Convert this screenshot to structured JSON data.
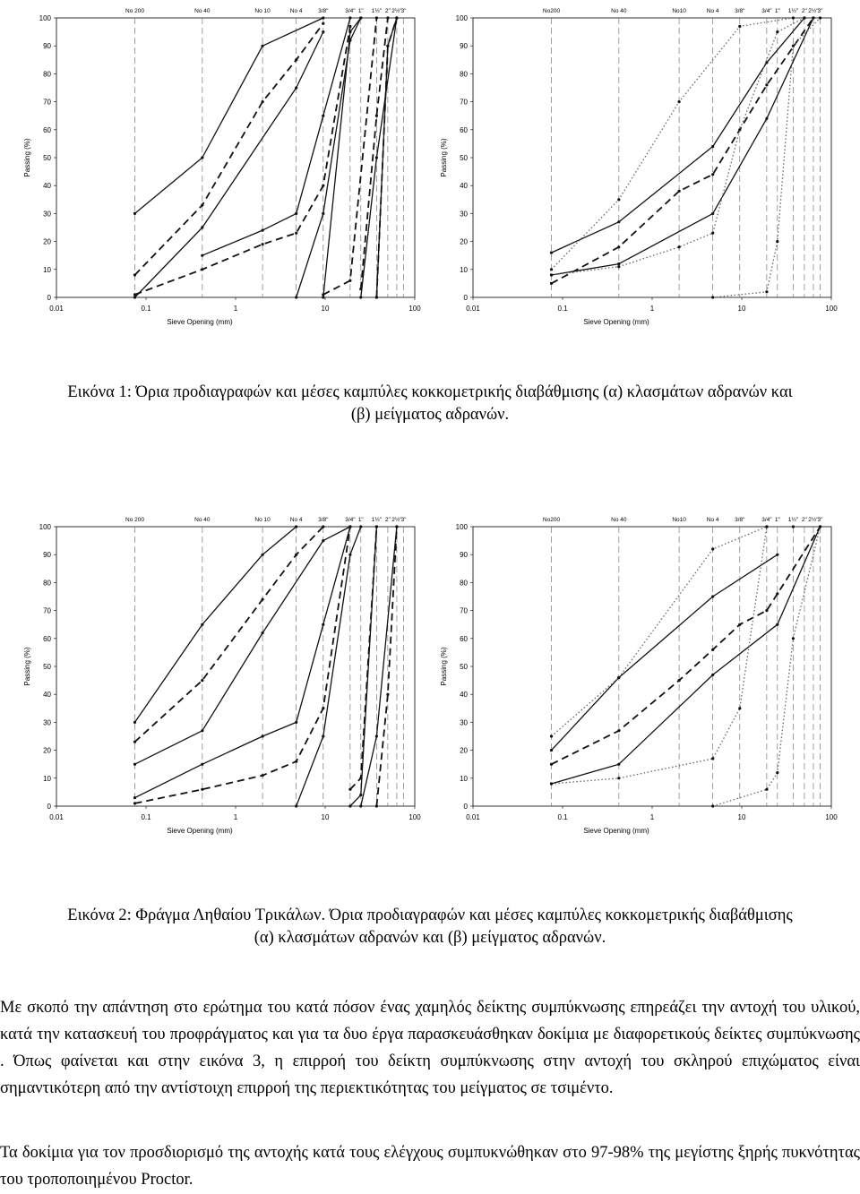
{
  "figures": [
    {
      "caption": [
        "Εικόνα 1: Όρια προδιαγραφών και μέσες καμπύλες κοκκομετρικής διαβάθμισης (α) κλασμάτων αδρανών και",
        "(β) μείγματος αδρανών."
      ],
      "charts": [
        "1a",
        "1b"
      ]
    },
    {
      "caption": [
        "Εικόνα 2: Φράγμα Ληθαίου Τρικάλων. Όρια προδιαγραφών και μέσες καμπύλες κοκκομετρικής διαβάθμισης",
        "(α) κλασμάτων αδρανών και (β) μείγματος αδρανών."
      ],
      "charts": [
        "2a",
        "2b"
      ]
    }
  ],
  "paragraphs": [
    "Με σκοπό την απάντηση στο ερώτημα του κατά πόσον ένας χαμηλός δείκτης συμπύκνωσης επηρεάζει την αντοχή του υλικού, κατά την κατασκευή του προφράγματος και για τα δυο έργα παρασκευάσθηκαν δοκίμια με διαφορετικούς δείκτες συμπύκνωσης . Όπως φαίνεται και στην εικόνα 3, η επιρροή του δείκτη συμπύκνωσης στην αντοχή του σκληρού επιχώματος είναι σημαντικότερη από την αντίστοιχη επιρροή της περιεκτικότητας του μείγματος σε τσιμέντο.",
    "Τα δοκίμια για τον προσδιορισμό της αντοχής κατά τους ελέγχους συμπυκνώθηκαν στο 97-98% της μεγίστης ξηρής πυκνότητας του τροποποιημένου Proctor."
  ],
  "chart_data": [
    {
      "id": "1a",
      "type": "line",
      "xscale": "log",
      "xlim": [
        0.01,
        100
      ],
      "ylim": [
        0,
        100
      ],
      "xlabel": "Sieve Opening (mm)",
      "ylabel": "Passing (%)",
      "x_ticks": [
        "0.01",
        "0.1",
        "1",
        "10",
        "100"
      ],
      "y_ticks": [
        "0",
        "10",
        "20",
        "30",
        "40",
        "50",
        "60",
        "70",
        "80",
        "90",
        "100"
      ],
      "sieves": [
        {
          "label": "No 200",
          "mm": 0.075
        },
        {
          "label": "No 40",
          "mm": 0.425
        },
        {
          "label": "No 10",
          "mm": 2.0
        },
        {
          "label": "No 4",
          "mm": 4.75
        },
        {
          "label": "3/8\"",
          "mm": 9.5
        },
        {
          "label": "3/4\"",
          "mm": 19
        },
        {
          "label": "1\"",
          "mm": 25
        },
        {
          "label": "1½\"",
          "mm": 37.5
        },
        {
          "label": "2\"",
          "mm": 50
        },
        {
          "label": "2½\"",
          "mm": 63
        },
        {
          "label": "3\"",
          "mm": 75
        }
      ],
      "series": [
        {
          "style": "solid",
          "x": [
            0.075,
            0.425,
            2.0,
            9.5
          ],
          "y": [
            30,
            50,
            90,
            100
          ]
        },
        {
          "style": "solid",
          "x": [
            0.075,
            0.425,
            4.75,
            9.5
          ],
          "y": [
            0,
            25,
            75,
            95
          ]
        },
        {
          "style": "dashed",
          "x": [
            0.075,
            0.425,
            2.0,
            4.75,
            9.5
          ],
          "y": [
            8,
            33,
            70,
            85,
            98
          ]
        },
        {
          "style": "solid",
          "x": [
            0.425,
            2.0,
            4.75,
            9.5,
            19
          ],
          "y": [
            15,
            24,
            30,
            65,
            100
          ]
        },
        {
          "style": "solid",
          "x": [
            4.75,
            9.5,
            19,
            25
          ],
          "y": [
            0,
            30,
            92,
            100
          ]
        },
        {
          "style": "dashed",
          "x": [
            0.075,
            0.425,
            2.0,
            4.75,
            9.5,
            19
          ],
          "y": [
            1,
            10,
            19,
            23,
            40,
            97
          ]
        },
        {
          "style": "solid",
          "x": [
            9.5,
            19,
            25
          ],
          "y": [
            0,
            95,
            100
          ]
        },
        {
          "style": "dashed",
          "x": [
            9.5,
            19,
            37.5
          ],
          "y": [
            1,
            6,
            100
          ]
        },
        {
          "style": "solid",
          "x": [
            37.5,
            50,
            63
          ],
          "y": [
            0,
            90,
            100
          ]
        },
        {
          "style": "dashed",
          "x": [
            37.5,
            50,
            63
          ],
          "y": [
            0,
            90,
            100
          ]
        },
        {
          "style": "solid",
          "x": [
            25,
            37.5,
            63
          ],
          "y": [
            0,
            50,
            100
          ]
        },
        {
          "style": "dashed",
          "x": [
            25,
            37.5,
            50
          ],
          "y": [
            3,
            65,
            100
          ]
        }
      ]
    },
    {
      "id": "1b",
      "type": "line",
      "xscale": "log",
      "xlim": [
        0.01,
        100
      ],
      "ylim": [
        0,
        100
      ],
      "xlabel": "Sieve Opening (mm)",
      "ylabel": "Passing (%)",
      "x_ticks": [
        "0.01",
        "0.1",
        "1",
        "10",
        "100"
      ],
      "y_ticks": [
        "0",
        "10",
        "20",
        "30",
        "40",
        "50",
        "60",
        "70",
        "80",
        "90",
        "100"
      ],
      "sieves": [
        {
          "label": "No200",
          "mm": 0.075
        },
        {
          "label": "No 40",
          "mm": 0.425
        },
        {
          "label": "No10",
          "mm": 2.0
        },
        {
          "label": "No 4",
          "mm": 4.75
        },
        {
          "label": "3/8\"",
          "mm": 9.5
        },
        {
          "label": "3/4\"",
          "mm": 19
        },
        {
          "label": "1\"",
          "mm": 25
        },
        {
          "label": "1½\"",
          "mm": 37.5
        },
        {
          "label": "2\"",
          "mm": 50
        },
        {
          "label": "2½\"",
          "mm": 63
        },
        {
          "label": "3\"",
          "mm": 75
        }
      ],
      "series": [
        {
          "style": "solid",
          "x": [
            0.075,
            0.425,
            4.75,
            19,
            50
          ],
          "y": [
            16,
            27,
            54,
            84,
            100
          ]
        },
        {
          "style": "solid",
          "x": [
            0.075,
            0.425,
            4.75,
            19,
            63
          ],
          "y": [
            8,
            12,
            30,
            64,
            100
          ]
        },
        {
          "style": "dashed",
          "x": [
            0.075,
            0.425,
            2.0,
            4.75,
            19,
            63
          ],
          "y": [
            5,
            18,
            38,
            44,
            76,
            100
          ]
        },
        {
          "style": "dotted",
          "x": [
            0.075,
            0.425,
            2.0,
            9.5,
            37.5
          ],
          "y": [
            10,
            35,
            70,
            97,
            100
          ]
        },
        {
          "style": "dotted",
          "x": [
            0.075,
            0.425,
            2.0,
            4.75,
            9.5,
            25,
            50
          ],
          "y": [
            8,
            11,
            18,
            23,
            60,
            95,
            100
          ]
        },
        {
          "style": "dotted",
          "x": [
            4.75,
            19,
            25,
            37.5,
            75
          ],
          "y": [
            0,
            2,
            20,
            90,
            100
          ]
        }
      ]
    },
    {
      "id": "2a",
      "type": "line",
      "xscale": "log",
      "xlim": [
        0.01,
        100
      ],
      "ylim": [
        0,
        100
      ],
      "xlabel": "Sieve Opening (mm)",
      "ylabel": "Passing (%)",
      "x_ticks": [
        "0.01",
        "0.1",
        "1",
        "10",
        "100"
      ],
      "y_ticks": [
        "0",
        "10",
        "20",
        "30",
        "40",
        "50",
        "60",
        "70",
        "80",
        "90",
        "100"
      ],
      "sieves": [
        {
          "label": "No 200",
          "mm": 0.075
        },
        {
          "label": "No 40",
          "mm": 0.425
        },
        {
          "label": "No 10",
          "mm": 2.0
        },
        {
          "label": "No 4",
          "mm": 4.75
        },
        {
          "label": "3/8\"",
          "mm": 9.5
        },
        {
          "label": "3/4\"",
          "mm": 19
        },
        {
          "label": "1\"",
          "mm": 25
        },
        {
          "label": "1½\"",
          "mm": 37.5
        },
        {
          "label": "2\"",
          "mm": 50
        },
        {
          "label": "2½\"",
          "mm": 63
        },
        {
          "label": "3\"",
          "mm": 75
        }
      ],
      "series": [
        {
          "style": "solid",
          "x": [
            0.075,
            0.425,
            2.0,
            4.75
          ],
          "y": [
            30,
            65,
            90,
            100
          ]
        },
        {
          "style": "dashed",
          "x": [
            0.075,
            0.425,
            2.0,
            4.75,
            9.5
          ],
          "y": [
            23,
            45,
            74,
            90,
            100
          ]
        },
        {
          "style": "solid",
          "x": [
            0.075,
            0.425,
            2.0,
            9.5,
            19
          ],
          "y": [
            15,
            27,
            62,
            95,
            100
          ]
        },
        {
          "style": "solid",
          "x": [
            0.075,
            0.425,
            2.0,
            4.75,
            9.5,
            19
          ],
          "y": [
            3,
            15,
            25,
            30,
            65,
            100
          ]
        },
        {
          "style": "dashed",
          "x": [
            0.075,
            0.425,
            2.0,
            4.75,
            9.5,
            19
          ],
          "y": [
            1,
            6,
            11,
            16,
            35,
            100
          ]
        },
        {
          "style": "solid",
          "x": [
            4.75,
            9.5,
            19,
            25
          ],
          "y": [
            0,
            25,
            90,
            100
          ]
        },
        {
          "style": "dashed",
          "x": [
            19,
            25,
            37.5
          ],
          "y": [
            6,
            10,
            100
          ]
        },
        {
          "style": "solid",
          "x": [
            19,
            25,
            37.5
          ],
          "y": [
            0,
            4,
            100
          ]
        },
        {
          "style": "solid",
          "x": [
            25,
            37.5,
            63
          ],
          "y": [
            0,
            25,
            100
          ]
        },
        {
          "style": "dashed",
          "x": [
            37.5,
            50,
            63
          ],
          "y": [
            0,
            40,
            100
          ]
        }
      ]
    },
    {
      "id": "2b",
      "type": "line",
      "xscale": "log",
      "xlim": [
        0.01,
        100
      ],
      "ylim": [
        0,
        100
      ],
      "xlabel": "Sieve Opening (mm)",
      "ylabel": "Passing (%)",
      "x_ticks": [
        "0.01",
        "0.1",
        "1",
        "10",
        "100"
      ],
      "y_ticks": [
        "0",
        "10",
        "20",
        "30",
        "40",
        "50",
        "60",
        "70",
        "80",
        "90",
        "100"
      ],
      "sieves": [
        {
          "label": "No200",
          "mm": 0.075
        },
        {
          "label": "No 40",
          "mm": 0.425
        },
        {
          "label": "No10",
          "mm": 2.0
        },
        {
          "label": "No 4",
          "mm": 4.75
        },
        {
          "label": "3/8\"",
          "mm": 9.5
        },
        {
          "label": "3/4\"",
          "mm": 19
        },
        {
          "label": "1\"",
          "mm": 25
        },
        {
          "label": "1½\"",
          "mm": 37.5
        },
        {
          "label": "2\"",
          "mm": 50
        },
        {
          "label": "2½\"",
          "mm": 63
        },
        {
          "label": "3\"",
          "mm": 75
        }
      ],
      "series": [
        {
          "style": "solid",
          "x": [
            0.075,
            0.425,
            4.75,
            25
          ],
          "y": [
            20,
            46,
            75,
            90
          ]
        },
        {
          "style": "dashed",
          "x": [
            0.075,
            0.425,
            2.0,
            4.75,
            9.5,
            19,
            25,
            75
          ],
          "y": [
            15,
            27,
            45,
            56,
            65,
            70,
            76,
            100
          ]
        },
        {
          "style": "solid",
          "x": [
            0.075,
            0.425,
            4.75,
            25,
            75
          ],
          "y": [
            8,
            15,
            47,
            65,
            100
          ]
        },
        {
          "style": "dotted",
          "x": [
            0.075,
            0.425,
            4.75,
            19,
            37.5
          ],
          "y": [
            25,
            46,
            92,
            100,
            100
          ]
        },
        {
          "style": "dotted",
          "x": [
            0.075,
            0.425,
            4.75,
            9.5,
            19
          ],
          "y": [
            8,
            10,
            17,
            35,
            100
          ]
        },
        {
          "style": "dotted",
          "x": [
            4.75,
            19,
            25,
            37.5,
            75
          ],
          "y": [
            0,
            6,
            12,
            60,
            100
          ]
        }
      ]
    }
  ]
}
